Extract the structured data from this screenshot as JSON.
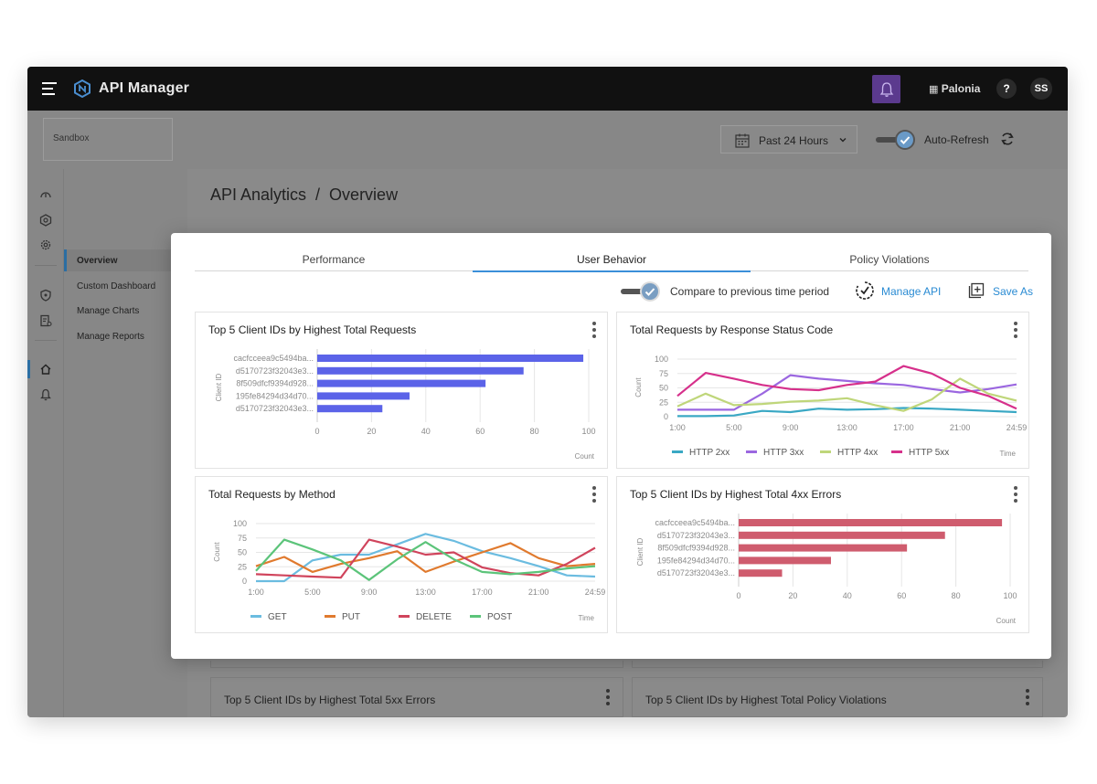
{
  "app": {
    "title": "API Manager",
    "org": "Palonia",
    "help": "?",
    "user_initials": "SS"
  },
  "environment": "Sandbox",
  "filters": {
    "time_range": "Past 24 Hours",
    "auto_refresh_label": "Auto-Refresh"
  },
  "nav": {
    "items": [
      "Overview",
      "Custom Dashboard",
      "Manage Charts",
      "Manage Reports"
    ],
    "active": "Overview"
  },
  "page_title": "API Analytics  /  Overview",
  "background_cards": [
    "Top 5 Client IDs by Highest Total 5xx Errors",
    "Top 5 Client IDs by Highest Total Policy Violations"
  ],
  "modal": {
    "tabs": [
      "Performance",
      "User Behavior",
      "Policy Violations"
    ],
    "active_tab": "User Behavior",
    "compare_label": "Compare to previous time period",
    "manage_api_label": "Manage API",
    "save_as_label": "Save As"
  },
  "colors": {
    "bar_requests": "#5b63e8",
    "bar_errors": "#cf5c6e",
    "http2xx": "#3aa8c4",
    "http3xx": "#9b67e0",
    "http4xx": "#bfd67a",
    "http5xx": "#d6308b",
    "get": "#6bbce0",
    "put": "#e07a2e",
    "delete": "#d0445c",
    "post": "#5cc47a"
  },
  "chart_data": [
    {
      "type": "bar",
      "orientation": "horizontal",
      "title": "Top 5 Client IDs by Highest Total Requests",
      "categories": [
        "cacfcceea9c5494ba...",
        "d5170723f32043e3...",
        "8f509dfcf9394d928...",
        "195fe84294d34d70...",
        "d5170723f32043e3..."
      ],
      "values": [
        98,
        76,
        62,
        34,
        24
      ],
      "ylabel": "Client ID",
      "xlabel": "Count",
      "xticks": [
        0,
        20,
        40,
        60,
        80,
        100
      ],
      "xlim": [
        0,
        100
      ]
    },
    {
      "type": "line",
      "title": "Total Requests by Response Status Code",
      "x": [
        "1:00",
        "3:00",
        "5:00",
        "7:00",
        "9:00",
        "11:00",
        "13:00",
        "15:00",
        "17:00",
        "19:00",
        "21:00",
        "23:00",
        "24:59"
      ],
      "xticks": [
        "1:00",
        "5:00",
        "9:00",
        "13:00",
        "17:00",
        "21:00",
        "24:59"
      ],
      "ylabel": "Count",
      "xlabel": "Time",
      "yticks": [
        0,
        25,
        50,
        75,
        100
      ],
      "ylim": [
        0,
        100
      ],
      "series": [
        {
          "name": "HTTP 2xx",
          "values": [
            1,
            1,
            2,
            10,
            8,
            14,
            12,
            13,
            15,
            14,
            12,
            10,
            8
          ]
        },
        {
          "name": "HTTP 3xx",
          "values": [
            12,
            12,
            12,
            40,
            72,
            66,
            62,
            58,
            55,
            48,
            42,
            48,
            56
          ]
        },
        {
          "name": "HTTP 4xx",
          "values": [
            18,
            40,
            20,
            22,
            26,
            28,
            32,
            20,
            10,
            30,
            66,
            40,
            28
          ]
        },
        {
          "name": "HTTP 5xx",
          "values": [
            36,
            76,
            66,
            55,
            48,
            46,
            55,
            61,
            88,
            75,
            50,
            36,
            14
          ]
        }
      ]
    },
    {
      "type": "line",
      "title": "Total Requests by Method",
      "x": [
        "1:00",
        "3:00",
        "5:00",
        "7:00",
        "9:00",
        "11:00",
        "13:00",
        "15:00",
        "17:00",
        "19:00",
        "21:00",
        "23:00",
        "24:59"
      ],
      "xticks": [
        "1:00",
        "5:00",
        "9:00",
        "13:00",
        "17:00",
        "21:00",
        "24:59"
      ],
      "ylabel": "Count",
      "xlabel": "Time",
      "yticks": [
        0,
        25,
        50,
        75,
        100
      ],
      "ylim": [
        0,
        100
      ],
      "series": [
        {
          "name": "GET",
          "values": [
            0,
            0,
            36,
            46,
            46,
            64,
            82,
            70,
            52,
            40,
            26,
            10,
            8
          ]
        },
        {
          "name": "PUT",
          "values": [
            26,
            42,
            16,
            30,
            40,
            52,
            16,
            34,
            50,
            66,
            40,
            26,
            30
          ]
        },
        {
          "name": "DELETE",
          "values": [
            12,
            10,
            8,
            6,
            72,
            60,
            46,
            50,
            24,
            14,
            10,
            30,
            58
          ]
        },
        {
          "name": "POST",
          "values": [
            18,
            72,
            55,
            36,
            2,
            38,
            68,
            38,
            16,
            12,
            16,
            22,
            26
          ]
        }
      ]
    },
    {
      "type": "bar",
      "orientation": "horizontal",
      "title": "Top 5 Client IDs by Highest Total 4xx Errors",
      "categories": [
        "cacfcceea9c5494ba...",
        "d5170723f32043e3...",
        "8f509dfcf9394d928...",
        "195fe84294d34d70...",
        "d5170723f32043e3..."
      ],
      "values": [
        97,
        76,
        62,
        34,
        16
      ],
      "ylabel": "Client ID",
      "xlabel": "Count",
      "xticks": [
        0,
        20,
        40,
        60,
        80,
        100
      ],
      "xlim": [
        0,
        100
      ]
    }
  ]
}
